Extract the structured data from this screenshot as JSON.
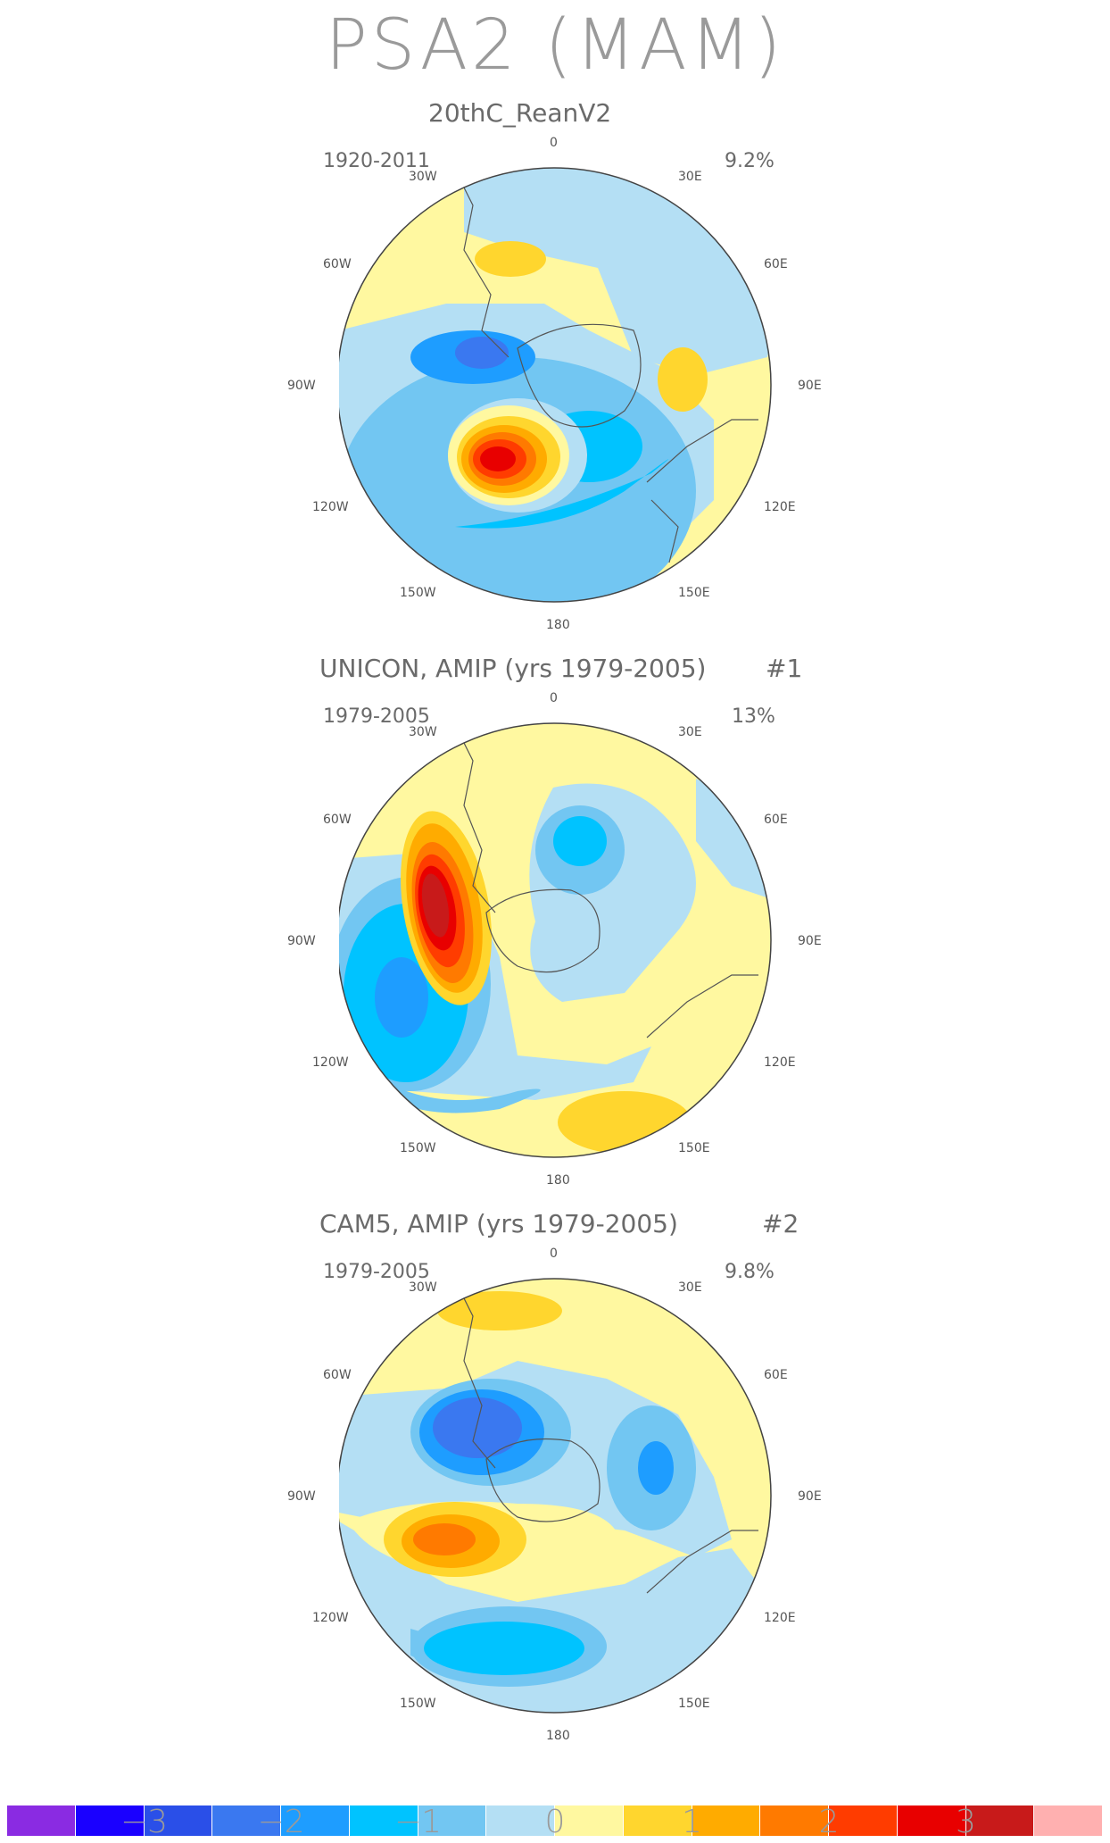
{
  "title": "PSA2 (MAM)",
  "panels": [
    {
      "title": "20thC_ReanV2",
      "number": "",
      "years": "1920-2011",
      "variance": "9.2%"
    },
    {
      "title": "UNICON, AMIP (yrs 1979-2005)",
      "number": "#1",
      "years": "1979-2005",
      "variance": "13%"
    },
    {
      "title": "CAM5, AMIP (yrs 1979-2005)",
      "number": "#2",
      "years": "1979-2005",
      "variance": "9.8%"
    }
  ],
  "lon_labels": {
    "n": "0",
    "nw": "30W",
    "ne": "30E",
    "w60": "60W",
    "e60": "60E",
    "w90": "90W",
    "e90": "90E",
    "w120": "120W",
    "e120": "120E",
    "w150": "150W",
    "e150": "150E",
    "s": "180"
  },
  "colorbar": {
    "colors": [
      "#8a2be2",
      "#1a00ff",
      "#2a4fe8",
      "#3a78f0",
      "#1e9dff",
      "#00c3ff",
      "#72c6f2",
      "#b4dff4",
      "#fff8a0",
      "#ffd62e",
      "#ffab00",
      "#ff7a00",
      "#ff3c00",
      "#e80000",
      "#c81a1a",
      "#ffb0b0"
    ],
    "ticks": [
      "−3",
      "−2",
      "−1",
      "0",
      "1",
      "2",
      "3"
    ]
  }
}
